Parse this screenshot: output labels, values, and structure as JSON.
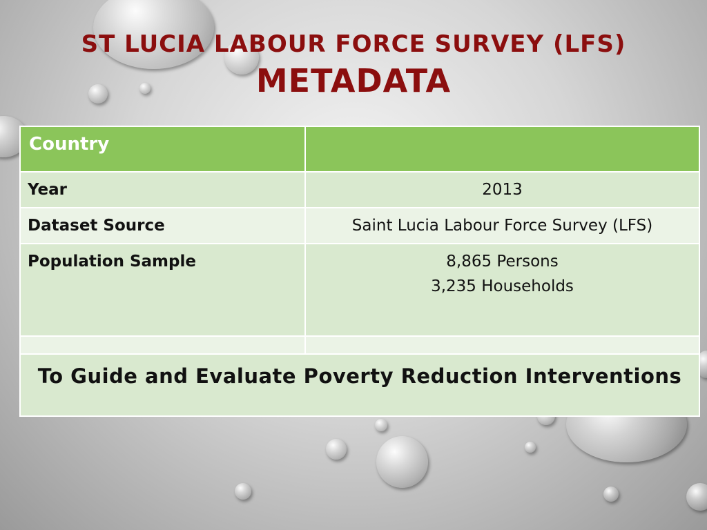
{
  "slide": {
    "title_line1": "ST LUCIA LABOUR FORCE SURVEY (LFS)",
    "title_line2": "METADATA"
  },
  "table": {
    "header": {
      "label": "Country",
      "value": ""
    },
    "rows": [
      {
        "label": "Year",
        "value": "2013"
      },
      {
        "label": "Dataset Source",
        "value": "Saint Lucia Labour Force Survey (LFS)"
      },
      {
        "label": "Population Sample",
        "value_line1": "8,865 Persons",
        "value_line2": "3,235 Households"
      }
    ],
    "purpose": "To Guide and Evaluate Poverty Reduction Interventions"
  },
  "colors": {
    "title": "#8b0e0e",
    "header_green": "#8bc55a",
    "row_dark": "#d9e9cf",
    "row_light": "#ebf3e6"
  }
}
